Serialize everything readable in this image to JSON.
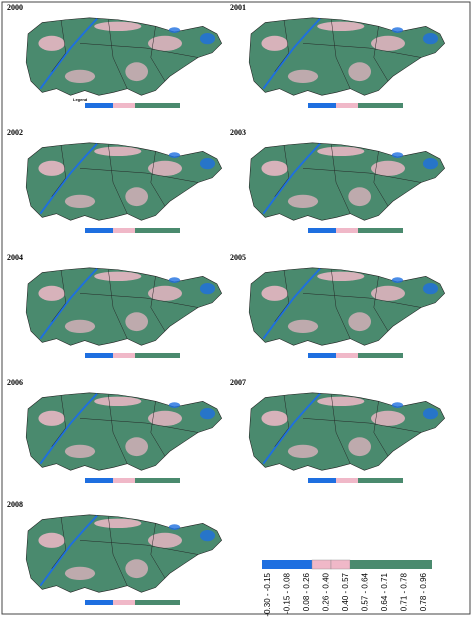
{
  "panels": [
    {
      "year": "2000",
      "legend_title": "Legend"
    },
    {
      "year": "2001"
    },
    {
      "year": "2002"
    },
    {
      "year": "2003"
    },
    {
      "year": "2004"
    },
    {
      "year": "2005"
    },
    {
      "year": "2006"
    },
    {
      "year": "2007"
    },
    {
      "year": "2008"
    }
  ],
  "legend": {
    "labels": [
      "-0.30 - -0.15",
      "-0.15 - 0.08",
      "0.08 - 0.26",
      "0.26 - 0.40",
      "0.40 - 0.57",
      "0.57 - 0.64",
      "0.64 - 0.71",
      "0.71 - 0.78",
      "0.78 - 0.96"
    ]
  }
}
